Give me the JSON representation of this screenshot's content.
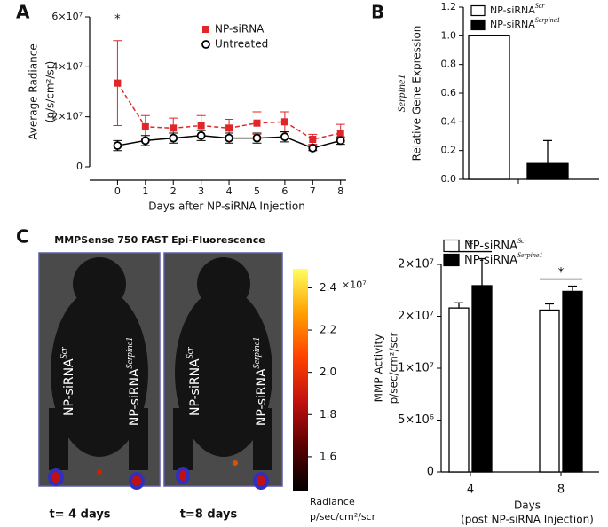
{
  "image_panel": {
    "panel": "C",
    "title": "MMPSense 750 FAST Epi-Fluorescence",
    "images": [
      {
        "caption": "t= 4 days",
        "labels": [
          {
            "text": "NP-siRNA",
            "sup": "Scr"
          },
          {
            "text": "NP-siRNA",
            "sup": "Serpine1"
          }
        ]
      },
      {
        "caption": "t=8 days",
        "labels": [
          {
            "text": "NP-siRNA",
            "sup": "Scr"
          },
          {
            "text": "NP-siRNA",
            "sup": "Serpine1"
          }
        ]
      }
    ]
  },
  "chart_data": [
    {
      "type": "line",
      "panel": "A",
      "xlabel": "Days after NP-siRNA Injection",
      "ylabel": [
        "Average Radiance",
        "(p/s/cm²/sr)"
      ],
      "x": [
        0,
        1,
        2,
        3,
        4,
        5,
        6,
        7,
        8
      ],
      "xlim": [
        -1,
        8.2
      ],
      "xticks": [
        0,
        1,
        2,
        3,
        4,
        5,
        6,
        7,
        8
      ],
      "ylim": [
        0,
        60000000
      ],
      "yticks": [
        0,
        {
          "value": 20000000,
          "label": "2×10⁷"
        },
        {
          "value": 40000000,
          "label": "4×10⁷"
        },
        {
          "value": 60000000,
          "label": "6×10⁷"
        }
      ],
      "series": [
        {
          "name": "NP-siRNA",
          "color": "#e0262a",
          "marker": "square",
          "dashed": true,
          "values": [
            33500000,
            16000000,
            15500000,
            16500000,
            15500000,
            17500000,
            18000000,
            11000000,
            13500000
          ],
          "errors": [
            17000000,
            4500000,
            4000000,
            4000000,
            3500000,
            4500000,
            4000000,
            2000000,
            3500000
          ]
        },
        {
          "name": "Untreated",
          "color": "#000000",
          "marker": "circle",
          "dashed": false,
          "values": [
            8500000,
            10500000,
            11500000,
            12500000,
            11500000,
            11500000,
            12000000,
            7500000,
            10500000
          ],
          "errors": [
            2000000,
            2000000,
            2000000,
            2000000,
            2000000,
            2000000,
            2000000,
            1000000,
            1500000
          ]
        }
      ],
      "annotations": [
        "*"
      ],
      "legend": "upper right"
    },
    {
      "type": "bar",
      "panel": "B",
      "ylabel": [
        "Serpine1",
        "Relative Gene Expression"
      ],
      "categories": [
        null
      ],
      "ylim": [
        0,
        1.2
      ],
      "yticks": [
        {
          "value": 0,
          "label": "0.0"
        },
        0.2,
        0.4,
        0.6,
        0.8,
        {
          "value": 1,
          "label": "1.0"
        },
        1.2
      ],
      "series": [
        {
          "name": "NP-siRNA",
          "name_sup": "Scr",
          "color": "#ffffff",
          "values": [
            1.0
          ]
        },
        {
          "name": "NP-siRNA",
          "name_sup": "Serpine1",
          "color": "#000000",
          "values": [
            0.11
          ],
          "errors": [
            0.16
          ]
        }
      ],
      "legend": "upper right"
    },
    {
      "type": "bar",
      "xlabel": [
        "Days",
        "(post NP-siRNA Injection)"
      ],
      "ylabel": [
        "MMP Activity",
        "p/sec/cm²/scr"
      ],
      "categories": [
        "4",
        "8"
      ],
      "ylim": [
        0,
        20000000
      ],
      "yticks": [
        0,
        {
          "value": 5000000,
          "label": "5×10⁶"
        },
        {
          "value": 10000000,
          "label": "1×10⁷"
        },
        {
          "value": 15000000,
          "label": "2×10⁷"
        },
        {
          "value": 20000000,
          "label": "2×10⁷"
        }
      ],
      "series": [
        {
          "name": "NP-siRNA",
          "name_sup": "Scr",
          "color": "#ffffff",
          "values": [
            15800000,
            15600000
          ],
          "errors": [
            500000,
            600000
          ]
        },
        {
          "name": "NP-siRNA",
          "name_sup": "Serpine1",
          "color": "#000000",
          "values": [
            17950000,
            17400000
          ],
          "errors": [
            2600000,
            500000
          ]
        }
      ],
      "annotations": [
        "*",
        "*"
      ],
      "legend": "upper left"
    },
    {
      "type": "colorbar",
      "label": [
        "Radiance",
        "p/sec/cm²/scr"
      ],
      "exponent": "×10⁷",
      "colors": [
        "#000000",
        "#5a0000",
        "#c01010",
        "#ff4000",
        "#ffa000",
        "#ffff60"
      ],
      "ylim": [
        14400000,
        24900000
      ],
      "yticks": [
        {
          "value": 16000000,
          "label": "1.6"
        },
        {
          "value": 18000000,
          "label": "1.8"
        },
        {
          "value": 20000000,
          "label": "2.0"
        },
        {
          "value": 22000000,
          "label": "2.2"
        },
        {
          "value": 24000000,
          "label": "2.4"
        }
      ]
    }
  ]
}
